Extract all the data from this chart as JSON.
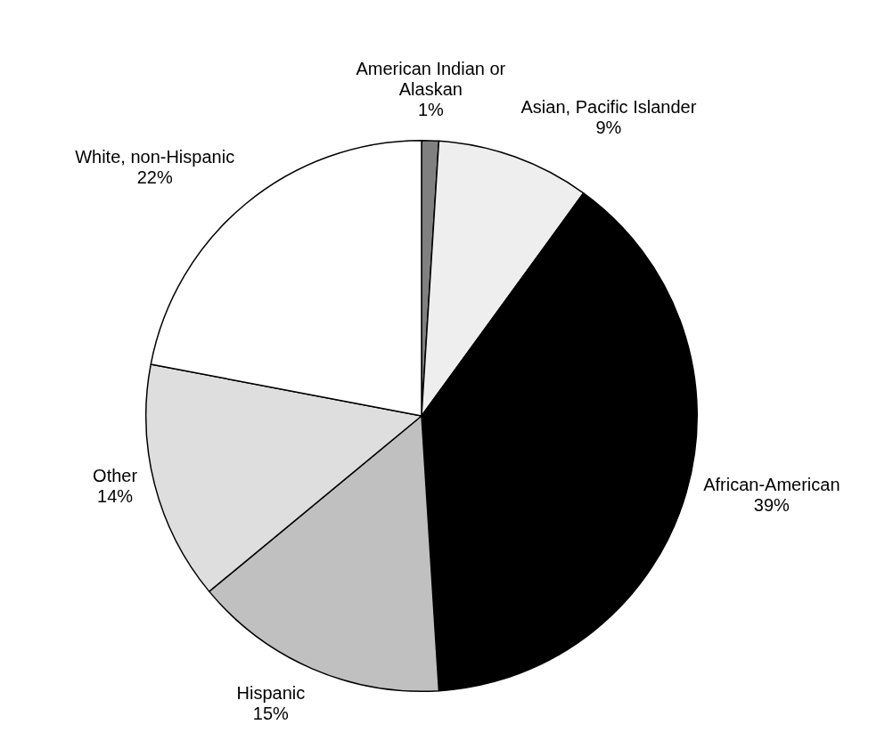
{
  "chart_data": {
    "type": "pie",
    "categories": [
      "American Indian or Alaskan",
      "Asian, Pacific Islander",
      "African-American",
      "Hispanic",
      "Other",
      "White, non-Hispanic"
    ],
    "values": [
      1,
      9,
      39,
      15,
      14,
      22
    ],
    "value_labels": [
      "1%",
      "9%",
      "39%",
      "15%",
      "14%",
      "22%"
    ],
    "colors": [
      "#808080",
      "#eeeeee",
      "#000000",
      "#c0c0c0",
      "#dedede",
      "#ffffff"
    ],
    "legend": false
  }
}
